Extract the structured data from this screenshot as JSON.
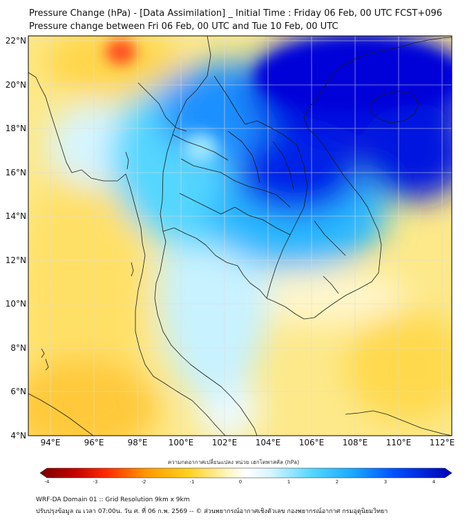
{
  "header": {
    "title": "Pressure Change (hPa) - [Data Assimilation] _ Initial Time : Friday 06 Feb, 00 UTC FCST+096",
    "subtitle": "Pressure change between Fri 06 Feb, 00 UTC and Tue 10 Feb, 00 UTC"
  },
  "map": {
    "lat_labels": [
      "22°N",
      "20°N",
      "18°N",
      "16°N",
      "14°N",
      "12°N",
      "10°N",
      "8°N",
      "6°N",
      "4°N"
    ],
    "lon_labels": [
      "94°E",
      "96°E",
      "98°E",
      "100°E",
      "102°E",
      "104°E",
      "106°E",
      "108°E",
      "110°E",
      "112°E"
    ],
    "lat_range": [
      4,
      22.3
    ],
    "lon_range": [
      93,
      112.5
    ]
  },
  "colorbar": {
    "title": "ความกดอากาศเปลี่ยนแปลง หน่วย เฮกโตพาสคัล (hPa)",
    "ticks": [
      "-4",
      "-3",
      "-2",
      "-1",
      "0",
      "1",
      "2",
      "3",
      "4"
    ],
    "range": [
      -4,
      4
    ],
    "colors": [
      "#7a0000",
      "#e00000",
      "#ff8c00",
      "#ffd21f",
      "#fff6b0",
      "#ffffff",
      "#c8f2ff",
      "#33ccff",
      "#0070ff",
      "#0000c8"
    ]
  },
  "footer": {
    "line1": "WRF-DA Domain 01 :: Grid Resolution 9km x 9km",
    "line2": "ปรับปรุงข้อมูล ณ เวลา 07:00น. วัน ศ. ที่ 06 ก.พ. 2569 -- © ส่วนพยากรณ์อากาศเชิงตัวเลข กองพยากรณ์อากาศ กรมอุตุนิยมวิทยา"
  },
  "colors": {
    "land_border": "#1a1a1a",
    "grid": "#dddddd"
  }
}
